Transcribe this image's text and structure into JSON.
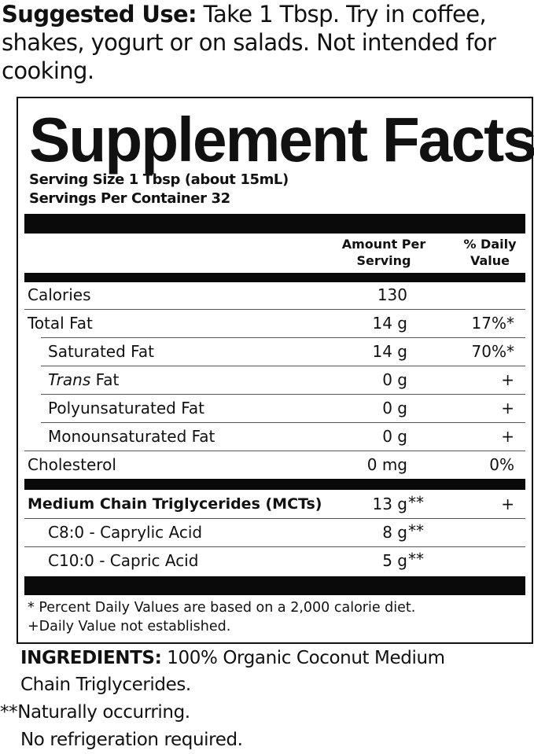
{
  "suggested_use": {
    "label": "Suggested Use:",
    "text": " Take 1 Tbsp. Try in coffee, shakes, yogurt or on salads. Not intended for cooking."
  },
  "panel": {
    "title": "Supplement Facts",
    "serving_size": "Serving Size 1 Tbsp (about 15mL)",
    "servings_per_container": "Servings Per Container 32",
    "col_amount": [
      "Amount Per",
      "Serving"
    ],
    "col_dv": [
      "% Daily",
      "Value"
    ],
    "rows": [
      {
        "label": "Calories",
        "amount": "130",
        "suffix": "",
        "dv": ""
      },
      {
        "label": "Total Fat",
        "amount": "14 g",
        "suffix": "",
        "dv": "17%*"
      },
      {
        "label": "Saturated Fat",
        "amount": "14 g",
        "suffix": "",
        "dv": "70%*"
      },
      {
        "label_italic": "Trans",
        "label": " Fat",
        "amount": "0 g",
        "suffix": "",
        "dv": "+"
      },
      {
        "label": "Polyunsaturated Fat",
        "amount": "0 g",
        "suffix": "",
        "dv": "+"
      },
      {
        "label": "Monounsaturated Fat",
        "amount": "0 g",
        "suffix": "",
        "dv": "+"
      },
      {
        "label": "Cholesterol",
        "amount": "0 mg",
        "suffix": "",
        "dv": "0%"
      }
    ],
    "mct_rows": [
      {
        "label": "Medium Chain Triglycerides (MCTs)",
        "amount": "13 g",
        "suffix": "**",
        "dv": "+"
      },
      {
        "label": "C8:0 - Caprylic Acid",
        "amount": "8 g",
        "suffix": "**",
        "dv": ""
      },
      {
        "label": "C10:0 - Capric Acid",
        "amount": "5 g",
        "suffix": "**",
        "dv": ""
      }
    ],
    "footnotes": [
      "* Percent Daily Values are based on a 2,000 calorie diet.",
      "+Daily Value not established."
    ]
  },
  "ingredients": {
    "label": "INGREDIENTS:",
    "text": " 100% Organic Coconut Medium",
    "text2": "Chain Triglycerides."
  },
  "notes": [
    "**Naturally occurring.",
    "No refrigeration required."
  ]
}
